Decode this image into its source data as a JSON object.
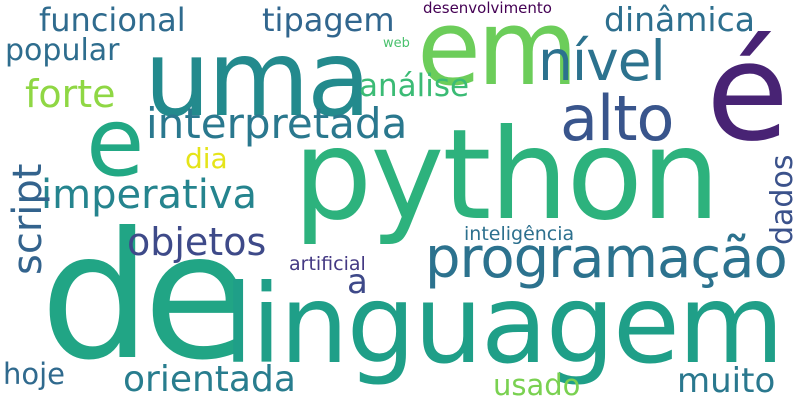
{
  "words": [
    {
      "id": "python",
      "text": "python",
      "color": "#2db27d",
      "orientation": "horizontal"
    },
    {
      "id": "de",
      "text": "de",
      "color": "#21a585",
      "orientation": "horizontal"
    },
    {
      "id": "linguagem",
      "text": "linguagem",
      "color": "#1f9f88",
      "orientation": "horizontal"
    },
    {
      "id": "e_acute",
      "text": "é",
      "color": "#482374",
      "orientation": "horizontal"
    },
    {
      "id": "uma",
      "text": "uma",
      "color": "#238a8d",
      "orientation": "horizontal"
    },
    {
      "id": "em",
      "text": "em",
      "color": "#6ccd5a",
      "orientation": "horizontal"
    },
    {
      "id": "e",
      "text": "e",
      "color": "#22a884",
      "orientation": "horizontal"
    },
    {
      "id": "programacao",
      "text": "programação",
      "color": "#2c728e",
      "orientation": "horizontal"
    },
    {
      "id": "alto",
      "text": "alto",
      "color": "#39558c",
      "orientation": "horizontal"
    },
    {
      "id": "nivel",
      "text": "nível",
      "color": "#2c728e",
      "orientation": "horizontal"
    },
    {
      "id": "interpretada",
      "text": "interpretada",
      "color": "#2a788e",
      "orientation": "horizontal"
    },
    {
      "id": "imperativa",
      "text": "imperativa",
      "color": "#25848e",
      "orientation": "horizontal"
    },
    {
      "id": "objetos",
      "text": "objetos",
      "color": "#3e4a89",
      "orientation": "horizontal"
    },
    {
      "id": "orientada",
      "text": "orientada",
      "color": "#287d8e",
      "orientation": "horizontal"
    },
    {
      "id": "funcional",
      "text": "funcional",
      "color": "#2f6b8e",
      "orientation": "horizontal"
    },
    {
      "id": "tipagem",
      "text": "tipagem",
      "color": "#31668e",
      "orientation": "horizontal"
    },
    {
      "id": "dinamica",
      "text": "dinâmica",
      "color": "#2e6f8e",
      "orientation": "horizontal"
    },
    {
      "id": "forte",
      "text": "forte",
      "color": "#8fd744",
      "orientation": "horizontal"
    },
    {
      "id": "popular",
      "text": "popular",
      "color": "#2e6d8e",
      "orientation": "horizontal"
    },
    {
      "id": "analise",
      "text": "análise",
      "color": "#3bbb75",
      "orientation": "horizontal"
    },
    {
      "id": "script",
      "text": "script",
      "color": "#33638d",
      "orientation": "vertical"
    },
    {
      "id": "dados",
      "text": "dados",
      "color": "#3b528b",
      "orientation": "vertical"
    },
    {
      "id": "dia",
      "text": "dia",
      "color": "#e5e419",
      "orientation": "horizontal"
    },
    {
      "id": "a",
      "text": "a",
      "color": "#3e4989",
      "orientation": "horizontal"
    },
    {
      "id": "muito",
      "text": "muito",
      "color": "#2a788e",
      "orientation": "horizontal"
    },
    {
      "id": "hoje",
      "text": "hoje",
      "color": "#306a8e",
      "orientation": "horizontal"
    },
    {
      "id": "usado",
      "text": "usado",
      "color": "#7ad151",
      "orientation": "horizontal"
    },
    {
      "id": "inteligencia",
      "text": "inteligência",
      "color": "#2d708e",
      "orientation": "horizontal"
    },
    {
      "id": "artificial",
      "text": "artificial",
      "color": "#443983",
      "orientation": "horizontal"
    },
    {
      "id": "desenvolvimento",
      "text": "desenvolvimento",
      "color": "#440154",
      "orientation": "horizontal"
    },
    {
      "id": "web",
      "text": "web",
      "color": "#4ac16d",
      "orientation": "horizontal"
    }
  ]
}
